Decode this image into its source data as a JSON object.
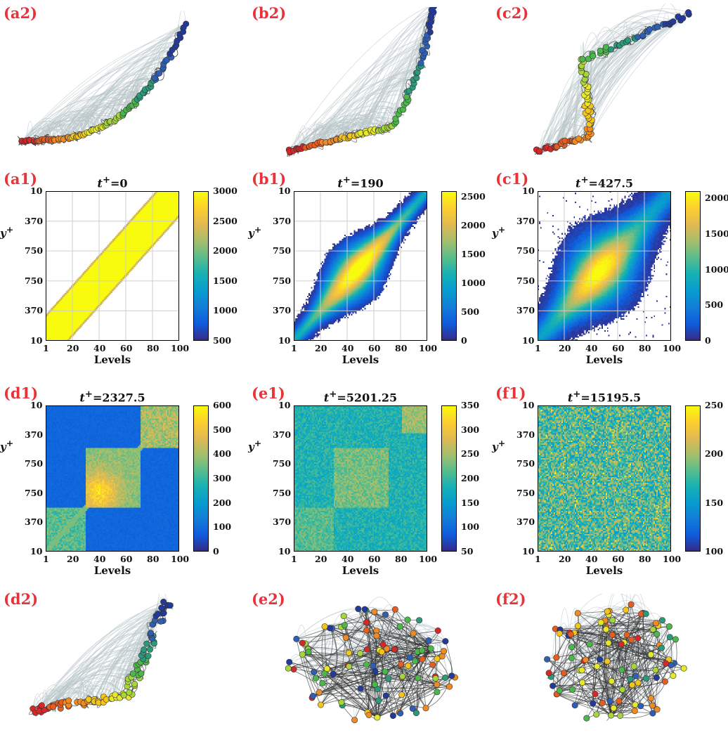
{
  "network_panels": [
    {
      "id": "a2",
      "label": "(a2)",
      "shape": "arc-thin",
      "spread": 0.08
    },
    {
      "id": "b2",
      "label": "(b2)",
      "shape": "arc-s",
      "spread": 0.1
    },
    {
      "id": "c2",
      "label": "(c2)",
      "shape": "arc-c",
      "spread": 0.14
    },
    {
      "id": "d2",
      "label": "(d2)",
      "shape": "arc-wide",
      "spread": 0.25
    },
    {
      "id": "e2",
      "label": "(e2)",
      "shape": "blob",
      "spread": 0.6
    },
    {
      "id": "f2",
      "label": "(f2)",
      "shape": "disk",
      "spread": 1.0
    }
  ],
  "colors": {
    "label_red": "#e8333a",
    "node_palette": [
      "#d62828",
      "#e85d1f",
      "#f08a24",
      "#f5c518",
      "#e8e82a",
      "#a6d63a",
      "#4cb84a",
      "#2a9a7a",
      "#2f5fb5",
      "#243a9a"
    ],
    "edge_light": "#b8c4c8",
    "edge_dark": "#333333"
  },
  "chart_data": [
    {
      "id": "a1",
      "label": "(a1)",
      "type": "heatmap",
      "title_var": "t",
      "title_sup": "+",
      "title_value": "=0",
      "xlabel": "Levels",
      "ylabel_var": "y",
      "ylabel_sup": "+",
      "xticks": [
        "1",
        "20",
        "40",
        "60",
        "80",
        "100"
      ],
      "yticks": [
        "10",
        "370",
        "750",
        "750",
        "370",
        "10"
      ],
      "clim": [
        500,
        3000
      ],
      "cticks": [
        "3000",
        "2500",
        "2000",
        "1500",
        "1000",
        "500"
      ],
      "pattern": "band",
      "band_width": 18,
      "grid": true
    },
    {
      "id": "b1",
      "label": "(b1)",
      "type": "heatmap",
      "title_var": "t",
      "title_sup": "+",
      "title_value": "=190",
      "xlabel": "Levels",
      "ylabel_var": "y",
      "ylabel_sup": "+",
      "xticks": [
        "1",
        "20",
        "40",
        "60",
        "80",
        "100"
      ],
      "yticks": [
        "10",
        "370",
        "750",
        "750",
        "370",
        "10"
      ],
      "clim": [
        0,
        2600
      ],
      "cticks": [
        "2500",
        "2000",
        "1500",
        "1000",
        "500",
        "0"
      ],
      "pattern": "blob",
      "band_width": 30,
      "grid": true
    },
    {
      "id": "c1",
      "label": "(c1)",
      "type": "heatmap",
      "title_var": "t",
      "title_sup": "+",
      "title_value": "=427.5",
      "xlabel": "Levels",
      "ylabel_var": "y",
      "ylabel_sup": "+",
      "xticks": [
        "1",
        "20",
        "40",
        "60",
        "80",
        "100"
      ],
      "yticks": [
        "10",
        "370",
        "750",
        "750",
        "370",
        "10"
      ],
      "clim": [
        0,
        2100
      ],
      "cticks": [
        "2000",
        "1500",
        "1000",
        "500",
        "0"
      ],
      "pattern": "wideblob",
      "band_width": 40,
      "grid": true
    },
    {
      "id": "d1",
      "label": "(d1)",
      "type": "heatmap",
      "title_var": "t",
      "title_sup": "+",
      "title_value": "=2327.5",
      "xlabel": "Levels",
      "ylabel_var": "y",
      "ylabel_sup": "+",
      "xticks": [
        "1",
        "20",
        "40",
        "60",
        "80",
        "100"
      ],
      "yticks": [
        "10",
        "370",
        "750",
        "750",
        "370",
        "10"
      ],
      "clim": [
        0,
        600
      ],
      "cticks": [
        "600",
        "500",
        "400",
        "300",
        "200",
        "100",
        "0"
      ],
      "pattern": "blocks",
      "band_width": 0,
      "grid": false
    },
    {
      "id": "e1",
      "label": "(e1)",
      "type": "heatmap",
      "title_var": "t",
      "title_sup": "+",
      "title_value": "=5201.25",
      "xlabel": "Levels",
      "ylabel_var": "y",
      "ylabel_sup": "+",
      "xticks": [
        "1",
        "20",
        "40",
        "60",
        "80",
        "100"
      ],
      "yticks": [
        "10",
        "370",
        "750",
        "750",
        "370",
        "10"
      ],
      "clim": [
        50,
        350
      ],
      "cticks": [
        "350",
        "300",
        "250",
        "200",
        "150",
        "100",
        "50"
      ],
      "pattern": "noisyblocks",
      "band_width": 0,
      "grid": false
    },
    {
      "id": "f1",
      "label": "(f1)",
      "type": "heatmap",
      "title_var": "t",
      "title_sup": "+",
      "title_value": "=15195.5",
      "xlabel": "Levels",
      "ylabel_var": "y",
      "ylabel_sup": "+",
      "xticks": [
        "1",
        "20",
        "40",
        "60",
        "80",
        "100"
      ],
      "yticks": [
        "10",
        "370",
        "750",
        "750",
        "370",
        "10"
      ],
      "clim": [
        100,
        250
      ],
      "cticks": [
        "250",
        "200",
        "150",
        "100"
      ],
      "pattern": "noise",
      "band_width": 0,
      "grid": false
    }
  ]
}
